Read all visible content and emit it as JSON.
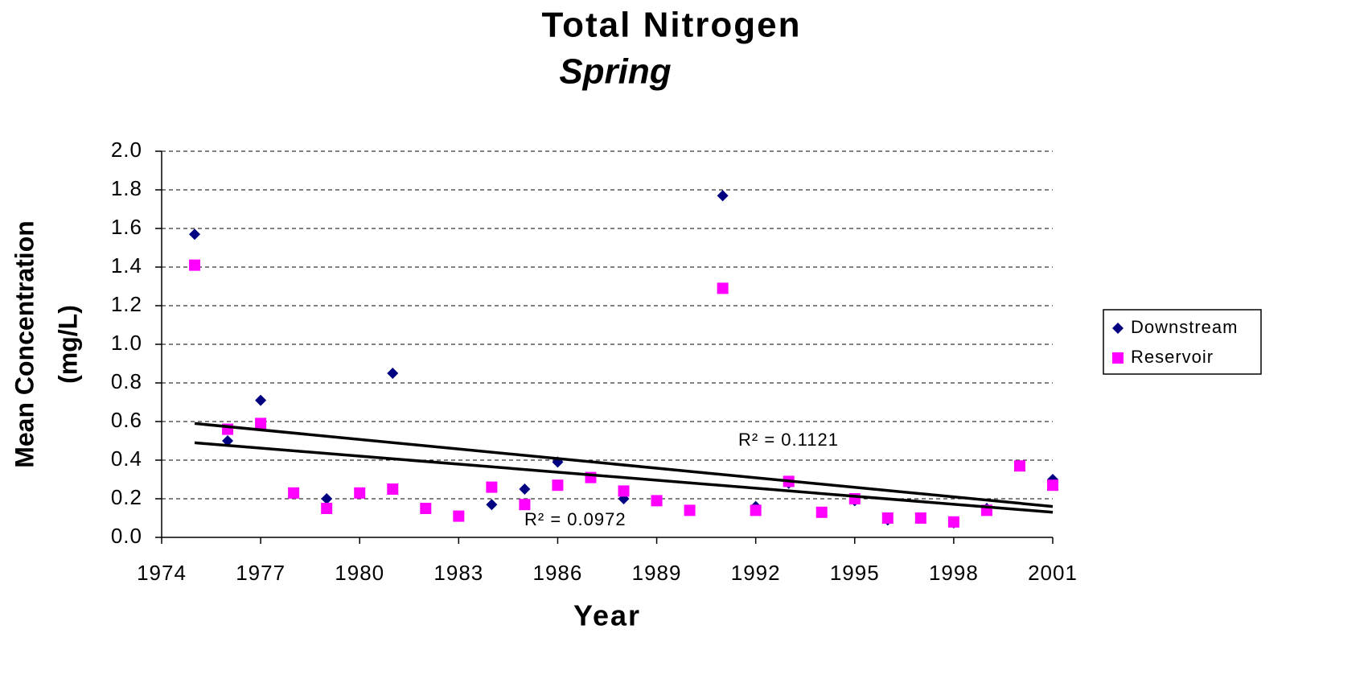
{
  "chart_data": {
    "type": "scatter",
    "title": "Total Nitrogen",
    "subtitle": "Spring",
    "x_label": "Year",
    "y_label": [
      "Mean Concentration",
      "(mg/L)"
    ],
    "x": [
      1975,
      1976,
      1977,
      1978,
      1979,
      1980,
      1981,
      1982,
      1983,
      1984,
      1985,
      1986,
      1987,
      1988,
      1989,
      1990,
      1991,
      1992,
      1993,
      1994,
      1995,
      1996,
      1997,
      1998,
      1999,
      2000,
      2001
    ],
    "series": [
      {
        "name": "Downstream",
        "color": "#000080",
        "marker": "diamond",
        "values": [
          1.57,
          0.5,
          0.71,
          null,
          0.2,
          null,
          0.85,
          null,
          null,
          0.17,
          0.25,
          0.39,
          null,
          0.2,
          null,
          null,
          1.77,
          0.16,
          0.28,
          null,
          0.19,
          0.09,
          0.1,
          0.075,
          0.15,
          null,
          0.3
        ]
      },
      {
        "name": "Reservoir",
        "color": "#ff00ff",
        "marker": "square",
        "values": [
          1.41,
          0.56,
          0.59,
          0.23,
          0.15,
          0.23,
          0.25,
          0.15,
          0.11,
          0.26,
          0.17,
          0.27,
          0.31,
          0.24,
          0.19,
          0.14,
          1.29,
          0.14,
          0.29,
          0.13,
          0.2,
          0.1,
          0.1,
          0.08,
          0.14,
          0.37,
          0.27
        ]
      }
    ],
    "trendlines": [
      {
        "x": [
          1975,
          2001
        ],
        "y": [
          0.59,
          0.16
        ],
        "label": "R² = 0.1121"
      },
      {
        "x": [
          1975,
          2001
        ],
        "y": [
          0.49,
          0.13
        ],
        "label": "R² = 0.0972"
      }
    ],
    "xlim": [
      1974,
      2001
    ],
    "xticks": [
      1974,
      1977,
      1980,
      1983,
      1986,
      1989,
      1992,
      1995,
      1998,
      2001
    ],
    "ylim": [
      0,
      2
    ],
    "yticks": [
      {
        "value": 0,
        "label": "0.0"
      },
      0.2,
      0.4,
      0.6,
      0.8,
      {
        "value": 1,
        "label": "1.0"
      },
      1.2,
      1.4,
      1.6,
      1.8,
      {
        "value": 2,
        "label": "2.0"
      }
    ],
    "grid": true,
    "legend": "right"
  }
}
